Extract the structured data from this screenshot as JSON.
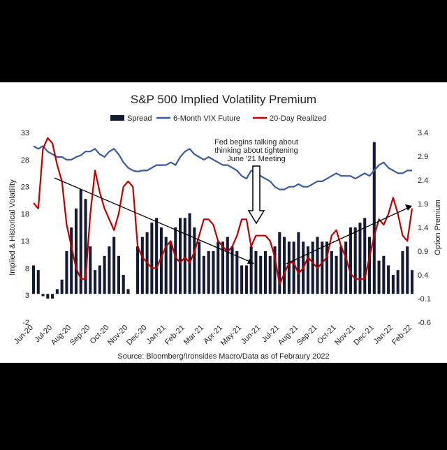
{
  "chart_data": {
    "type": "combo",
    "title": "S&P 500 Implied Volatility Premium",
    "source": "Source: Bloomberg/Ironsides Macro/Data as of Febraury 2022",
    "y_label": "Implied & Historical Volatility",
    "y2_label": "Option Premium",
    "annotations": [
      "Fed begins talking about",
      "thinking about tightening",
      "June '21 Meeting"
    ],
    "categories": [
      "Jun-20",
      null,
      null,
      null,
      "Jul-20",
      null,
      null,
      null,
      "Aug-20",
      null,
      null,
      null,
      "Sep-20",
      null,
      null,
      null,
      "Oct-20",
      null,
      null,
      null,
      "Nov-20",
      null,
      null,
      null,
      "Dec-20",
      null,
      null,
      null,
      "Jan-21",
      null,
      null,
      null,
      "Feb-21",
      null,
      null,
      null,
      "Mar-21",
      null,
      null,
      null,
      "Apr-21",
      null,
      null,
      null,
      "May-21",
      null,
      null,
      null,
      "Jun-21",
      null,
      null,
      null,
      "Jul-21",
      null,
      null,
      null,
      "Aug-21",
      null,
      null,
      null,
      "Sep-21",
      null,
      null,
      null,
      "Oct-21",
      null,
      null,
      null,
      "Nov-21",
      null,
      null,
      null,
      "Dec-21",
      null,
      null,
      null,
      "Jan-22",
      null,
      null,
      null,
      "Feb-22"
    ],
    "ylim": [
      -2,
      33
    ],
    "yticks": [
      -2,
      3,
      8,
      13,
      18,
      23,
      28,
      33
    ],
    "y2lim": [
      -0.6,
      3.4
    ],
    "y2ticks": [
      -0.6,
      -0.1,
      0.4,
      0.9,
      1.4,
      1.9,
      2.4,
      2.9,
      3.4
    ],
    "series": [
      {
        "name": "Spread",
        "type": "bar",
        "axis": "y2",
        "color": "#151a33",
        "values": [
          0.6,
          0.5,
          -0.05,
          -0.1,
          -0.1,
          0.1,
          0.3,
          0.9,
          1.4,
          1.8,
          2.2,
          2.0,
          1.0,
          0.5,
          0.6,
          0.8,
          1.0,
          1.2,
          0.8,
          0.4,
          0.1,
          0,
          1.0,
          1.2,
          1.3,
          1.5,
          1.6,
          1.4,
          1.2,
          1.1,
          1.4,
          1.6,
          1.6,
          1.7,
          1.4,
          1.1,
          0.8,
          0.9,
          0.9,
          1.1,
          1.1,
          1.2,
          1.0,
          0.9,
          0.6,
          0.6,
          1.0,
          0.9,
          0.8,
          0.9,
          0.8,
          1.0,
          1.3,
          1.2,
          1.1,
          1.1,
          1.3,
          1.1,
          1.0,
          1.1,
          1.2,
          1.1,
          1.1,
          0.9,
          0.8,
          1.0,
          1.1,
          1.4,
          1.4,
          1.5,
          1.6,
          1.2,
          3.2,
          0.7,
          0.8,
          0.6,
          0.4,
          0.5,
          0.9,
          1.0,
          0.5
        ]
      },
      {
        "name": "6-Month VIX Future",
        "type": "line",
        "color": "#3c5a9a",
        "values": [
          30.5,
          30,
          30.5,
          29.5,
          29,
          28.5,
          28.5,
          28,
          28,
          28.5,
          28.8,
          29.5,
          29.5,
          30,
          29,
          28.5,
          29.5,
          30,
          29,
          27.5,
          26.5,
          26,
          25.8,
          26,
          26,
          26.5,
          27,
          27,
          27,
          27.5,
          27,
          28.5,
          29.5,
          30,
          29,
          28.5,
          28,
          28.5,
          28,
          27.5,
          27,
          27,
          26.5,
          26,
          25,
          24.5,
          26,
          25.5,
          25,
          24.5,
          24,
          23,
          22.5,
          22.5,
          23,
          23,
          23.5,
          23,
          23,
          23.5,
          24,
          24,
          24.5,
          25,
          25.5,
          25,
          25,
          25,
          24.5,
          25,
          25.5,
          25,
          26,
          27,
          27.5,
          26.5,
          26,
          25.5,
          25.5,
          26,
          26
        ]
      },
      {
        "name": "20-Day Realized",
        "type": "line",
        "color": "#c00000",
        "values": [
          20,
          19,
          30,
          32,
          31,
          27,
          24,
          16,
          12,
          8,
          6,
          6,
          18,
          26,
          22,
          19,
          17,
          15,
          18,
          23,
          24,
          23,
          12,
          10,
          9,
          8,
          8,
          10,
          12,
          13,
          10,
          9,
          10,
          9,
          11,
          14,
          17,
          17,
          16,
          13,
          12,
          11,
          12,
          14,
          17,
          17,
          12,
          14,
          14,
          14,
          13,
          10,
          5,
          7,
          9,
          9,
          7,
          8,
          10,
          9,
          8,
          9,
          10,
          14,
          15,
          12,
          10,
          7,
          6,
          6,
          6,
          10,
          14,
          17,
          16,
          18,
          21,
          18,
          14,
          13,
          19
        ]
      }
    ]
  }
}
